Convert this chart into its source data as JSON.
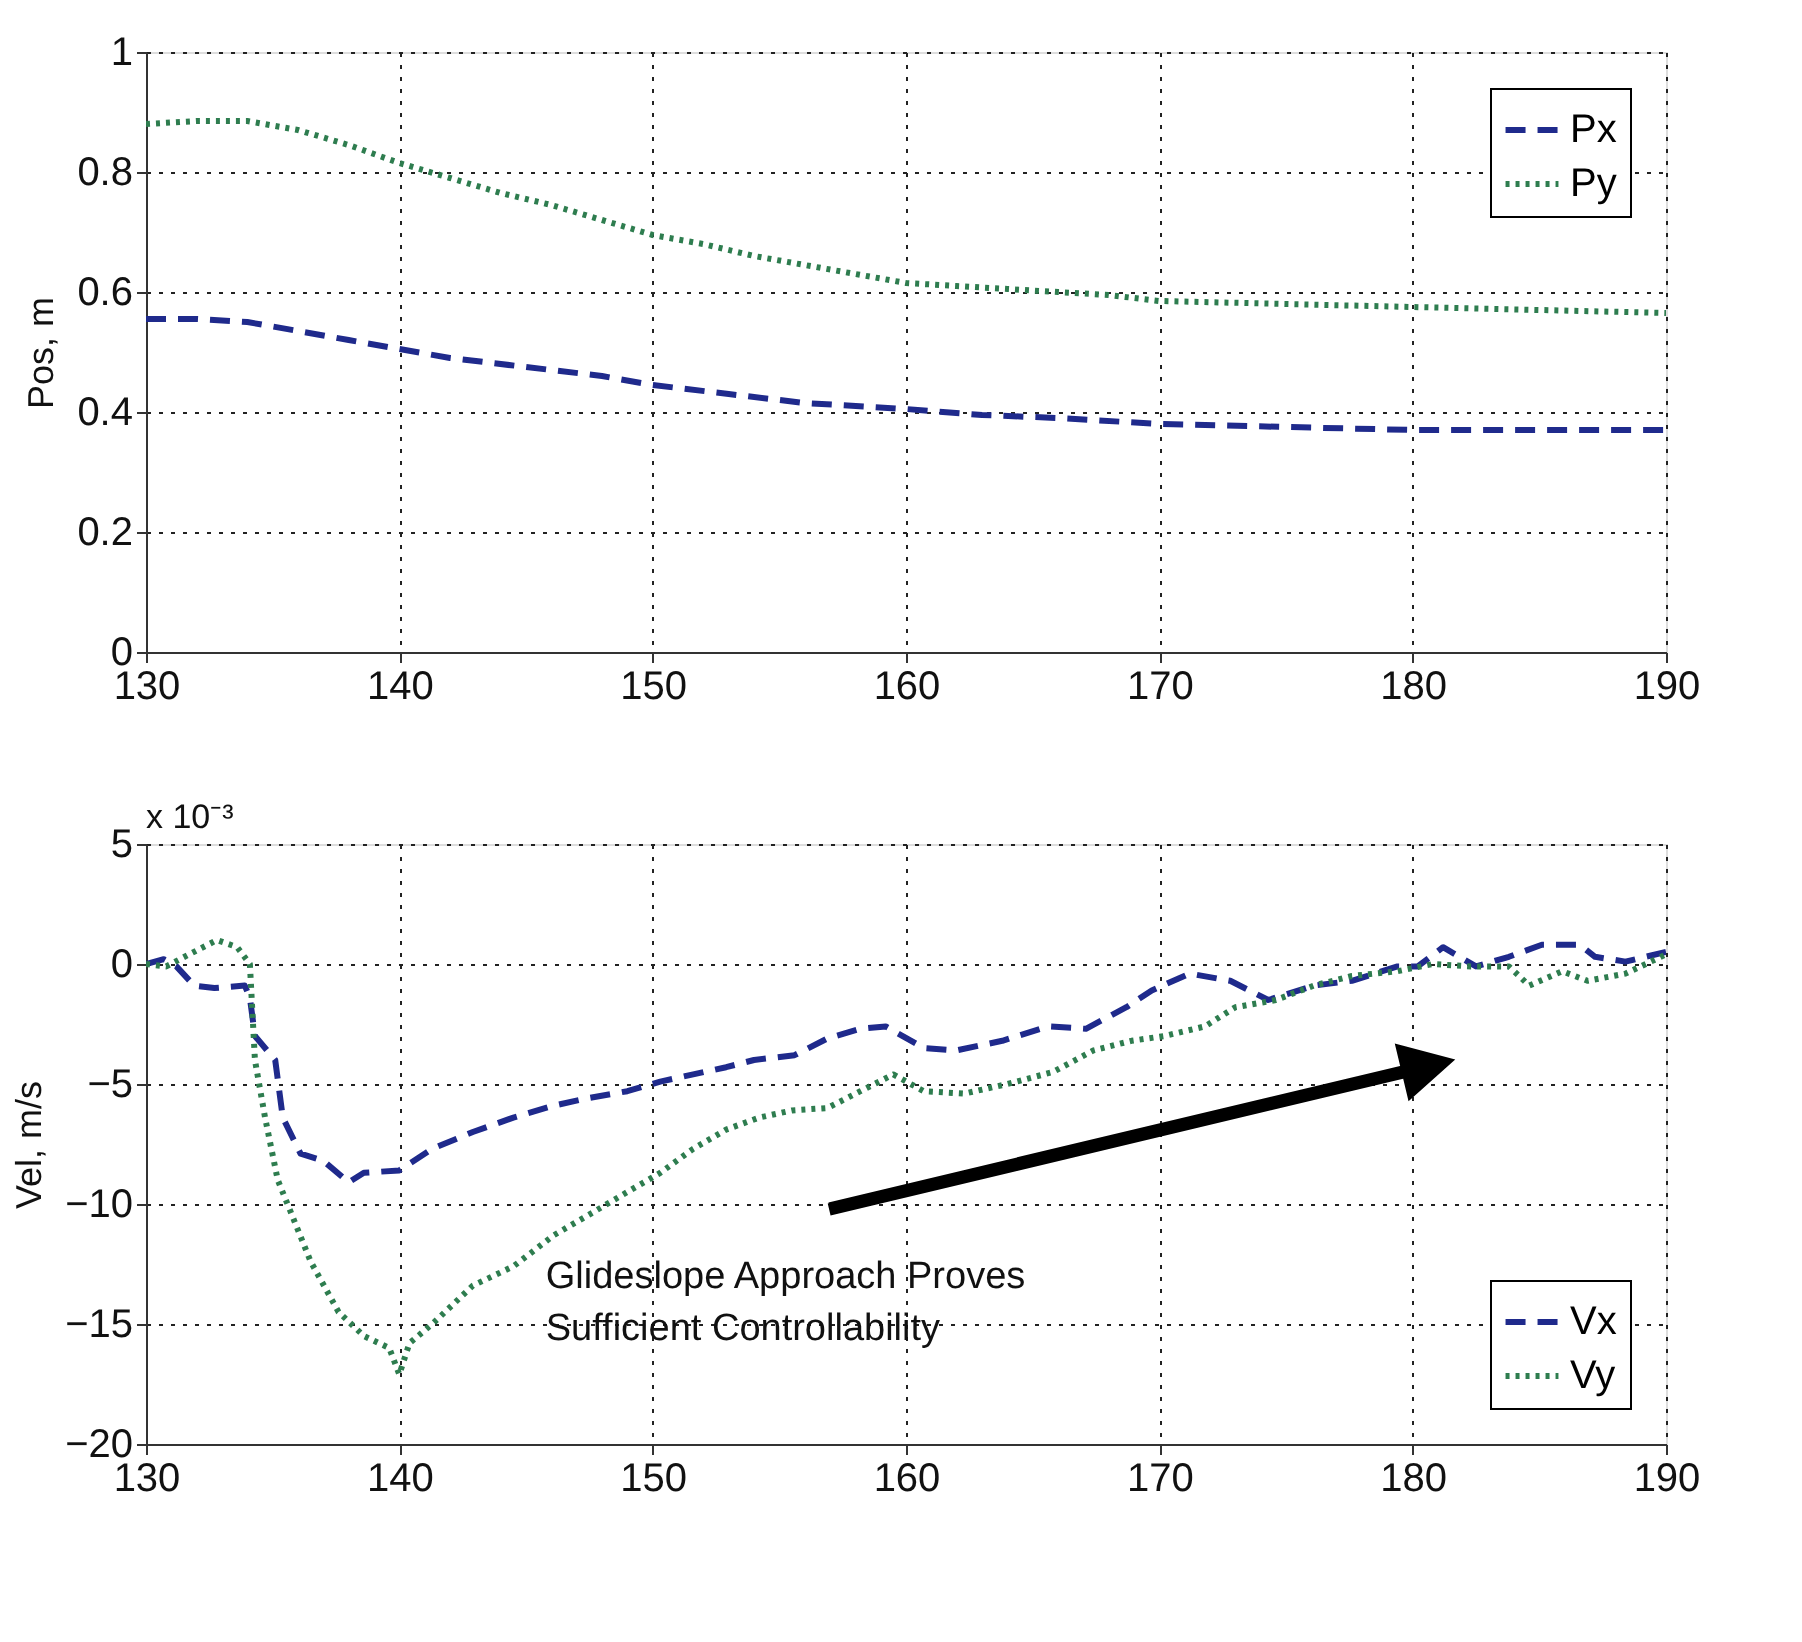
{
  "chart_data": [
    {
      "type": "line",
      "ylabel": "Pos, m",
      "xlim": [
        130,
        190
      ],
      "xticks": [
        130,
        140,
        150,
        160,
        170,
        180,
        190
      ],
      "ylim": [
        0,
        1
      ],
      "yticks": [
        0,
        0.2,
        0.4,
        0.6,
        0.8,
        1
      ],
      "grid": true,
      "legend": "top right",
      "series": [
        {
          "name": "Px",
          "color": "#1f2a8c",
          "line_style": "dashed",
          "x": [
            130,
            132,
            134,
            136,
            138,
            140,
            142,
            145,
            148,
            150,
            153,
            156,
            160,
            163,
            166,
            170,
            175,
            180,
            185,
            190
          ],
          "values": [
            0.555,
            0.555,
            0.55,
            0.535,
            0.52,
            0.505,
            0.49,
            0.475,
            0.46,
            0.445,
            0.43,
            0.415,
            0.405,
            0.395,
            0.39,
            0.38,
            0.375,
            0.37,
            0.37,
            0.37
          ]
        },
        {
          "name": "Py",
          "color": "#2e7d4f",
          "line_style": "dotted",
          "x": [
            130,
            132,
            134,
            136,
            138,
            140,
            142,
            144,
            146,
            148,
            150,
            152,
            154,
            156,
            158,
            160,
            162,
            164,
            166,
            168,
            170,
            175,
            180,
            185,
            190
          ],
          "values": [
            0.88,
            0.885,
            0.885,
            0.87,
            0.845,
            0.815,
            0.79,
            0.765,
            0.745,
            0.72,
            0.695,
            0.68,
            0.66,
            0.645,
            0.63,
            0.615,
            0.61,
            0.605,
            0.6,
            0.595,
            0.585,
            0.58,
            0.575,
            0.57,
            0.565
          ]
        }
      ]
    },
    {
      "type": "line",
      "ylabel": "Vel, m/s",
      "xlim": [
        130,
        190
      ],
      "xticks": [
        130,
        140,
        150,
        160,
        170,
        180,
        190
      ],
      "ylim": [
        -20,
        5
      ],
      "yticks": [
        -20,
        -15,
        -10,
        -5,
        0,
        5
      ],
      "grid": true,
      "legend": "bottom right",
      "annotations": [
        "x 10⁻³",
        "Glideslope Approach Proves\nSufficient Controllability"
      ],
      "series": [
        {
          "name": "Vx",
          "color": "#1f2a8c",
          "line_style": "dashed",
          "x": [
            130,
            130.7,
            131.2,
            131.9,
            132.7,
            133.9,
            134.1,
            134.3,
            135.1,
            135.4,
            136.1,
            137,
            138,
            138.6,
            140,
            141.3,
            142.9,
            144.5,
            146.1,
            147.4,
            149,
            150.3,
            151.6,
            152.9,
            154,
            155.6,
            156.9,
            158.2,
            159.2,
            160.7,
            162,
            163.8,
            165.6,
            167.1,
            168.7,
            169.7,
            171.2,
            172.8,
            174.3,
            176.1,
            177.6,
            179.4,
            180.2,
            181.2,
            182.5,
            183.8,
            185.1,
            186.6,
            187.2,
            188.4,
            190
          ],
          "values": [
            0,
            0.2,
            -0.1,
            -0.9,
            -1.0,
            -0.9,
            -1.4,
            -3,
            -4,
            -6.4,
            -7.9,
            -8.2,
            -9.1,
            -8.7,
            -8.6,
            -7.7,
            -7.0,
            -6.4,
            -5.9,
            -5.6,
            -5.3,
            -4.9,
            -4.6,
            -4.3,
            -4.0,
            -3.8,
            -3.1,
            -2.7,
            -2.6,
            -3.5,
            -3.6,
            -3.2,
            -2.6,
            -2.7,
            -1.8,
            -1.1,
            -0.4,
            -0.7,
            -1.5,
            -0.9,
            -0.7,
            -0.1,
            -0.1,
            0.7,
            -0.1,
            0.3,
            0.8,
            0.8,
            0.3,
            0.1,
            0.5
          ]
        },
        {
          "name": "Vy",
          "color": "#2e7d4f",
          "line_style": "dotted",
          "x": [
            130,
            130.8,
            131.7,
            132.8,
            133.6,
            134.1,
            134.3,
            134.7,
            135.2,
            135.7,
            136.5,
            137.6,
            138.6,
            139.6,
            140,
            140.4,
            141.3,
            142.9,
            144.5,
            146.1,
            147.4,
            149,
            150.3,
            151.6,
            152.9,
            154.2,
            155.5,
            156.9,
            158.2,
            159.5,
            160.7,
            162.3,
            164,
            165.8,
            167.4,
            168.9,
            170.2,
            171.8,
            173,
            174.6,
            176.1,
            177.6,
            179.4,
            180.8,
            182.3,
            183.8,
            184.6,
            185.9,
            186.9,
            188.4,
            190
          ],
          "values": [
            0,
            -0.1,
            0.4,
            1.0,
            0.7,
            0,
            -4.0,
            -6.4,
            -9,
            -10.3,
            -12.4,
            -14.5,
            -15.5,
            -16,
            -17.1,
            -15.8,
            -15,
            -13.4,
            -12.6,
            -11.3,
            -10.5,
            -9.5,
            -8.7,
            -7.7,
            -6.9,
            -6.4,
            -6.1,
            -6.0,
            -5.3,
            -4.6,
            -5.3,
            -5.4,
            -5,
            -4.5,
            -3.6,
            -3.2,
            -3.0,
            -2.6,
            -1.8,
            -1.5,
            -0.9,
            -0.5,
            -0.3,
            0,
            -0.1,
            -0.1,
            -0.9,
            -0.3,
            -0.7,
            -0.4,
            0.4
          ]
        }
      ]
    }
  ]
}
